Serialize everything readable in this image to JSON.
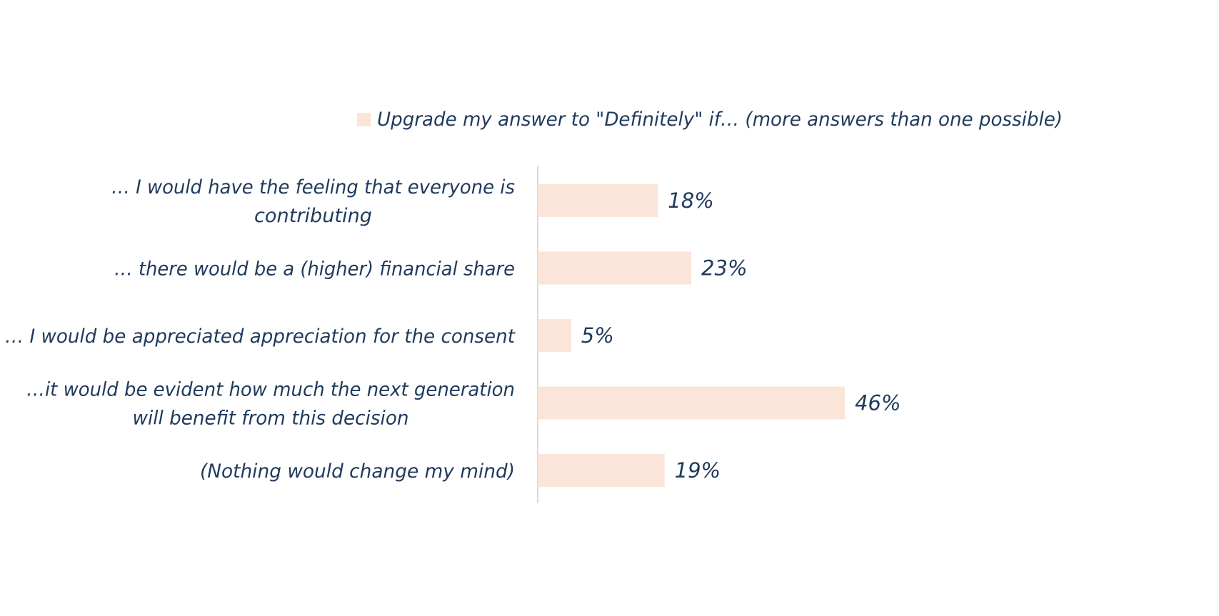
{
  "chart_data": {
    "type": "bar",
    "orientation": "horizontal",
    "categories": [
      [
        "… I would have the feeling that everyone is",
        "contributing"
      ],
      [
        "… there would be a (higher) financial share"
      ],
      [
        "… I would be appreciated appreciation for the consent"
      ],
      [
        "…it would be evident how much the next generation",
        "will benefit from this decision"
      ],
      [
        "(Nothing would change my mind)"
      ]
    ],
    "series": [
      {
        "name": "Upgrade my answer to \"Definitely\"  if… (more answers than one possible)",
        "values": [
          18,
          23,
          5,
          46,
          19
        ],
        "value_labels": [
          "18%",
          "23%",
          "5%",
          "46%",
          "19%"
        ]
      }
    ],
    "xlim": [
      0,
      100
    ],
    "grid": false,
    "legend_position": "top"
  },
  "colors": {
    "bar": "#fbe5d8",
    "text": "#1f3a5c",
    "axis": "#d9d9d9"
  }
}
